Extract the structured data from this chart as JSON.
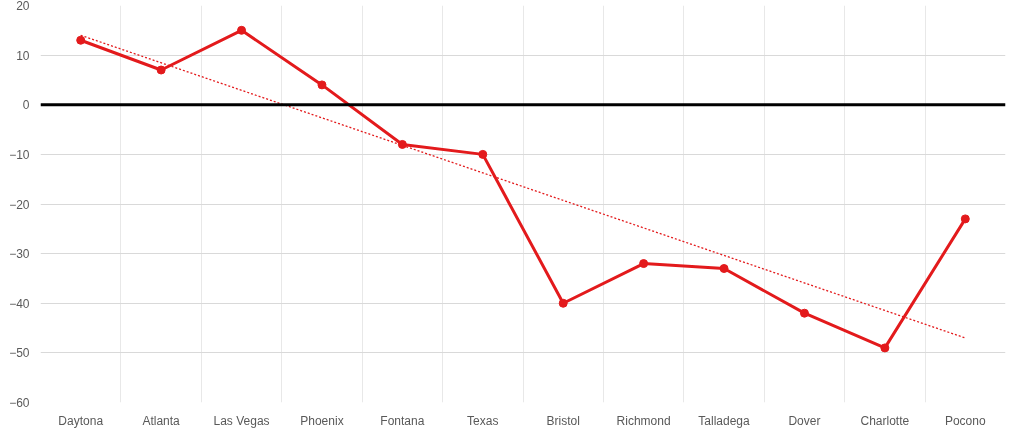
{
  "chart_data": {
    "type": "line",
    "categories": [
      "Daytona",
      "Atlanta",
      "Las Vegas",
      "Phoenix",
      "Fontana",
      "Texas",
      "Bristol",
      "Richmond",
      "Talladega",
      "Dover",
      "Charlotte",
      "Pocono"
    ],
    "series": [
      {
        "color": "#e31a1c",
        "values": [
          13,
          7,
          15,
          4,
          -8,
          -10,
          -40,
          -32,
          -33,
          -42,
          -49,
          -23
        ],
        "marker": "circle",
        "line_style": "solid"
      },
      {
        "type": "line",
        "color": "#e31a1c",
        "x": [
          "Daytona",
          "Pocono"
        ],
        "values": [
          14,
          -47
        ],
        "marker": "none",
        "line_style": "dotted"
      }
    ],
    "ylim": [
      -60,
      20
    ],
    "yticks": [
      -60,
      -50,
      -40,
      -30,
      -20,
      -10,
      0,
      10,
      20
    ],
    "grid": true,
    "ref_lines": [
      {
        "axis": "y",
        "value": 0,
        "color": "#000000",
        "line_style": "solid"
      }
    ]
  }
}
